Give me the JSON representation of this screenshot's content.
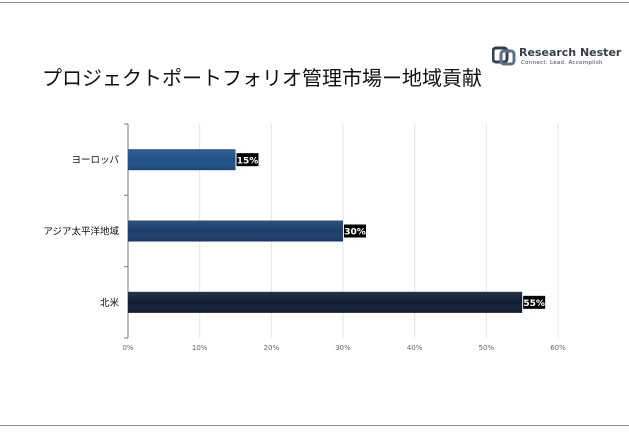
{
  "page": {
    "title": "プロジェクトポートフォリオ管理市場ー地域貢献"
  },
  "logo": {
    "brand_text": "Research Nester",
    "tagline": "Connect. Lead. Accomplish",
    "colors": {
      "main": "#3a3f47",
      "accent": "#5b6f8a"
    }
  },
  "chart_data": {
    "type": "bar",
    "orientation": "horizontal",
    "title": "プロジェクトポートフォリオ管理市場ー地域貢献",
    "categories": [
      "ヨーロッパ",
      "アジア太平洋地域",
      "北米"
    ],
    "values": [
      15,
      30,
      55
    ],
    "data_labels": [
      "15%",
      "30%",
      "55%"
    ],
    "bar_colors": [
      "#1f4e87",
      "#1a3e6b",
      "#0f1e33"
    ],
    "x_ticks": [
      "0%",
      "10%",
      "20%",
      "30%",
      "40%",
      "50%",
      "60%"
    ],
    "xlim": [
      0,
      60
    ],
    "grid": "vertical",
    "legend": "none"
  }
}
